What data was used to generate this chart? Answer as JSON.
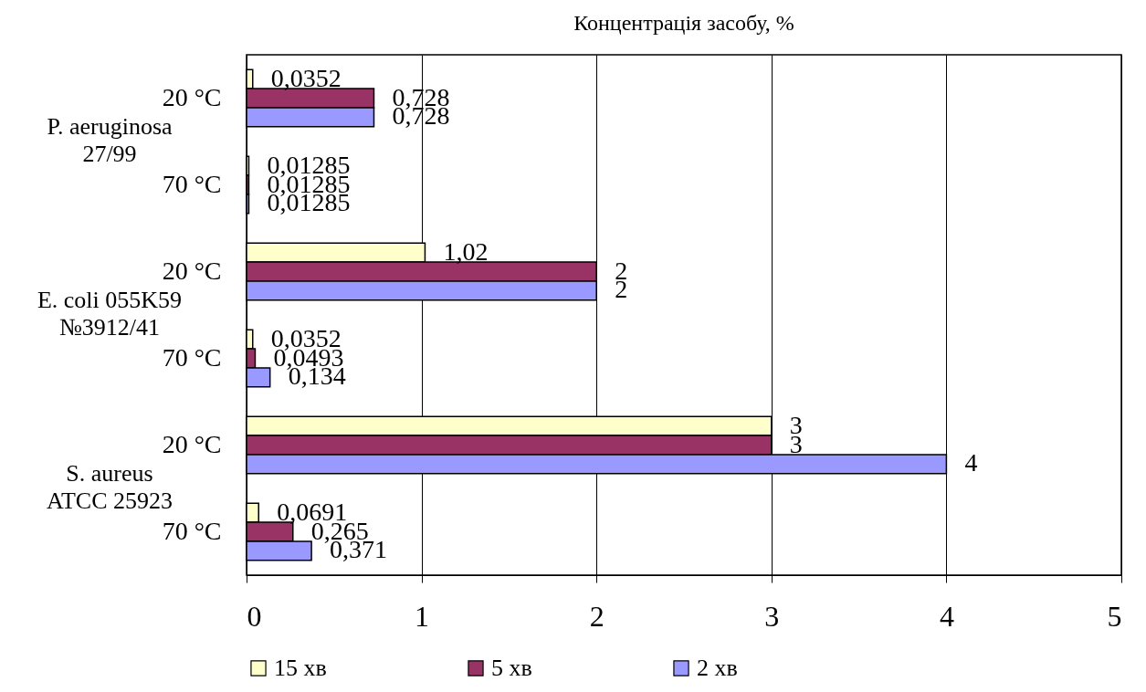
{
  "chart_data": {
    "type": "bar",
    "orientation": "horizontal",
    "title": "Концентрація засобу,  %",
    "categories": [
      "20 °C",
      "70 °C",
      "20 °C",
      "70 °C",
      "20 °C",
      "70 °C"
    ],
    "annotations": [
      "P. aeruginosa\n27/99",
      "E. coli 055K59\n№3912/41",
      "S. aureus\nATCC 25923"
    ],
    "series": [
      {
        "name": "15 хв",
        "color": "#ffffcc",
        "values": [
          0.0352,
          0.01285,
          1.02,
          0.0352,
          3,
          0.0691
        ],
        "value_labels": [
          "0,0352",
          "0,01285",
          "1,02",
          "0,0352",
          "3",
          "0,0691"
        ]
      },
      {
        "name": "5 хв",
        "color": "#993366",
        "values": [
          0.728,
          0.01285,
          2,
          0.0493,
          3,
          0.265
        ],
        "value_labels": [
          "0,728",
          "0,01285",
          "2",
          "0,0493",
          "3",
          "0,265"
        ]
      },
      {
        "name": "2 хв",
        "color": "#9999ff",
        "values": [
          0.728,
          0.01285,
          2,
          0.134,
          4,
          0.371
        ],
        "value_labels": [
          "0,728",
          "0,01285",
          "2",
          "0,134",
          "4",
          "0,371"
        ]
      }
    ],
    "xlim": [
      0,
      5
    ],
    "xticks": [
      0,
      1,
      2,
      3,
      4,
      5
    ],
    "grid": "x",
    "legend": "bottom"
  }
}
